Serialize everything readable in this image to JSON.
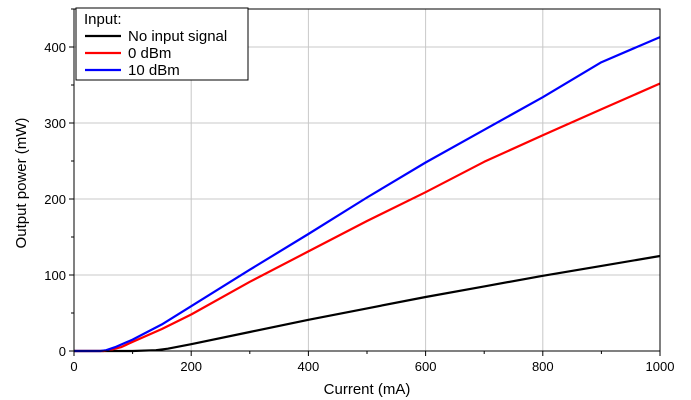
{
  "chart_data": {
    "type": "line",
    "title": "",
    "xlabel": "Current (mA)",
    "ylabel": "Output power (mW)",
    "xlim": [
      0,
      1000
    ],
    "ylim": [
      0,
      450
    ],
    "xticks": [
      0,
      200,
      400,
      600,
      800,
      1000
    ],
    "yticks": [
      0,
      100,
      200,
      300,
      400
    ],
    "xtick_labels": [
      "0",
      "200",
      "400",
      "600",
      "800",
      "1000"
    ],
    "ytick_labels": [
      "0",
      "100",
      "200",
      "300",
      "400"
    ],
    "grid": true,
    "legend": {
      "title": "Input:",
      "position": "top-left"
    },
    "series": [
      {
        "name": "No input signal",
        "color": "#000000",
        "x": [
          0,
          60,
          100,
          140,
          160,
          200,
          300,
          400,
          500,
          600,
          700,
          800,
          900,
          1000
        ],
        "y": [
          0,
          0,
          0,
          1,
          3,
          9,
          25,
          41,
          56,
          71,
          85,
          99,
          112,
          125
        ]
      },
      {
        "name": "0 dBm",
        "color": "#ff0000",
        "x": [
          0,
          50,
          60,
          80,
          100,
          150,
          200,
          300,
          400,
          500,
          600,
          700,
          800,
          900,
          1000
        ],
        "y": [
          0,
          0,
          1,
          5,
          12,
          29,
          48,
          91,
          131,
          171,
          209,
          249,
          284,
          318,
          352
        ]
      },
      {
        "name": "10 dBm",
        "color": "#0000ff",
        "x": [
          0,
          45,
          55,
          70,
          100,
          150,
          200,
          300,
          400,
          500,
          600,
          700,
          800,
          900,
          1000
        ],
        "y": [
          0,
          0,
          1,
          5,
          15,
          35,
          59,
          107,
          154,
          202,
          248,
          291,
          334,
          380,
          413
        ]
      }
    ]
  }
}
